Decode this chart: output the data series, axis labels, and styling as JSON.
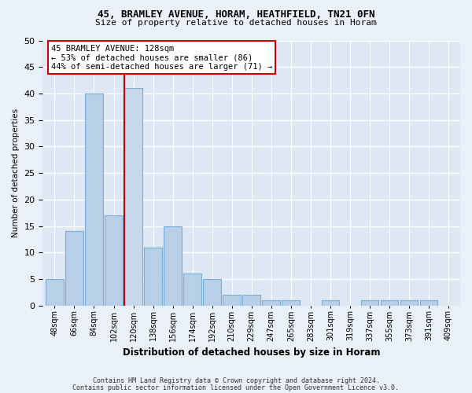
{
  "title1": "45, BRAMLEY AVENUE, HORAM, HEATHFIELD, TN21 0FN",
  "title2": "Size of property relative to detached houses in Horam",
  "xlabel": "Distribution of detached houses by size in Horam",
  "ylabel": "Number of detached properties",
  "categories": [
    "48sqm",
    "66sqm",
    "84sqm",
    "102sqm",
    "120sqm",
    "138sqm",
    "156sqm",
    "174sqm",
    "192sqm",
    "210sqm",
    "229sqm",
    "247sqm",
    "265sqm",
    "283sqm",
    "301sqm",
    "319sqm",
    "337sqm",
    "355sqm",
    "373sqm",
    "391sqm",
    "409sqm"
  ],
  "values": [
    5,
    14,
    40,
    17,
    41,
    11,
    15,
    6,
    5,
    2,
    2,
    1,
    1,
    0,
    1,
    0,
    1,
    1,
    1,
    1,
    0
  ],
  "highlight_index": 4,
  "bar_color": "#b8cfe8",
  "bar_edge_color": "#7aadd4",
  "highlight_bar_color": "#c8d8ea",
  "highlight_bar_edge_color": "#cc0000",
  "annotation_text": "45 BRAMLEY AVENUE: 128sqm\n← 53% of detached houses are smaller (86)\n44% of semi-detached houses are larger (71) →",
  "annotation_box_color": "#ffffff",
  "annotation_box_edge": "#cc0000",
  "ylim": [
    0,
    50
  ],
  "yticks": [
    0,
    5,
    10,
    15,
    20,
    25,
    30,
    35,
    40,
    45,
    50
  ],
  "footer1": "Contains HM Land Registry data © Crown copyright and database right 2024.",
  "footer2": "Contains public sector information licensed under the Open Government Licence v3.0.",
  "background_color": "#eaf0f8",
  "plot_bg_color": "#dde8f4",
  "grid_color": "#ffffff"
}
